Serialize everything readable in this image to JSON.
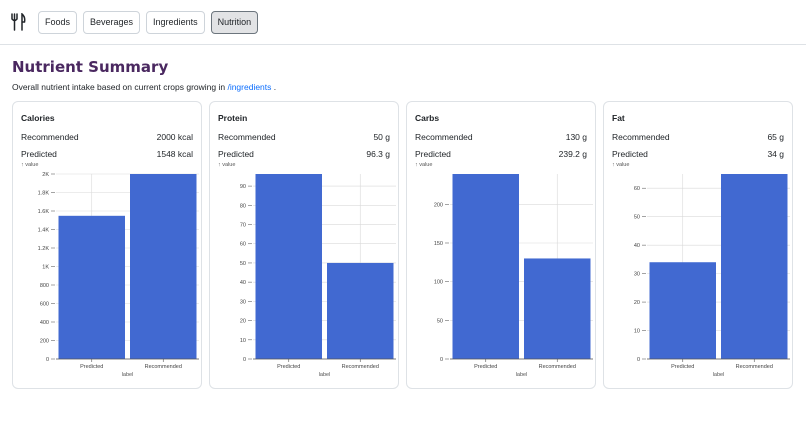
{
  "nav": {
    "logo": "fork-and-knife-icon",
    "items": [
      "Foods",
      "Beverages",
      "Ingredients",
      "Nutrition"
    ],
    "active": "Nutrition"
  },
  "page": {
    "title": "Nutrient Summary",
    "subtitle_prefix": "Overall nutrient intake based on current crops growing in ",
    "subtitle_link": "/ingredients",
    "subtitle_suffix": " ."
  },
  "labels": {
    "recommended": "Recommended",
    "predicted": "Predicted"
  },
  "colors": {
    "bar": "#4169d1",
    "title": "#4a2860",
    "link": "#0d6efd"
  },
  "cards": [
    {
      "title": "Calories",
      "recommended": "2000 kcal",
      "predicted": "1548 kcal"
    },
    {
      "title": "Protein",
      "recommended": "50 g",
      "predicted": "96.3 g"
    },
    {
      "title": "Carbs",
      "recommended": "130 g",
      "predicted": "239.2 g"
    },
    {
      "title": "Fat",
      "recommended": "65 g",
      "predicted": "34 g"
    }
  ],
  "chart_data": [
    {
      "type": "bar",
      "title": "Calories",
      "categories": [
        "Predicted",
        "Recommended"
      ],
      "values": [
        1548,
        2000
      ],
      "xlabel": "label",
      "ylabel": "↑ value",
      "ylim": [
        0,
        2000
      ],
      "ticks": [
        0,
        200,
        400,
        600,
        800,
        1000,
        1200,
        1400,
        1600,
        1800,
        2000
      ],
      "tick_labels": [
        "0",
        "200",
        "400",
        "600",
        "800",
        "1K",
        "1.2K",
        "1.4K",
        "1.6K",
        "1.8K",
        "2K"
      ]
    },
    {
      "type": "bar",
      "title": "Protein",
      "categories": [
        "Predicted",
        "Recommended"
      ],
      "values": [
        96.3,
        50
      ],
      "xlabel": "label",
      "ylabel": "↑ value",
      "ylim": [
        0,
        96.3
      ],
      "ticks": [
        0,
        10,
        20,
        30,
        40,
        50,
        60,
        70,
        80,
        90
      ],
      "tick_labels": [
        "0",
        "10",
        "20",
        "30",
        "40",
        "50",
        "60",
        "70",
        "80",
        "90"
      ]
    },
    {
      "type": "bar",
      "title": "Carbs",
      "categories": [
        "Predicted",
        "Recommended"
      ],
      "values": [
        239.2,
        130
      ],
      "xlabel": "label",
      "ylabel": "↑ value",
      "ylim": [
        0,
        239.2
      ],
      "ticks": [
        0,
        50,
        100,
        150,
        200
      ],
      "tick_labels": [
        "0",
        "50",
        "100",
        "150",
        "200"
      ]
    },
    {
      "type": "bar",
      "title": "Fat",
      "categories": [
        "Predicted",
        "Recommended"
      ],
      "values": [
        34,
        65
      ],
      "xlabel": "label",
      "ylabel": "↑ value",
      "ylim": [
        0,
        65
      ],
      "ticks": [
        0,
        10,
        20,
        30,
        40,
        50,
        60
      ],
      "tick_labels": [
        "0",
        "10",
        "20",
        "30",
        "40",
        "50",
        "60"
      ]
    }
  ]
}
